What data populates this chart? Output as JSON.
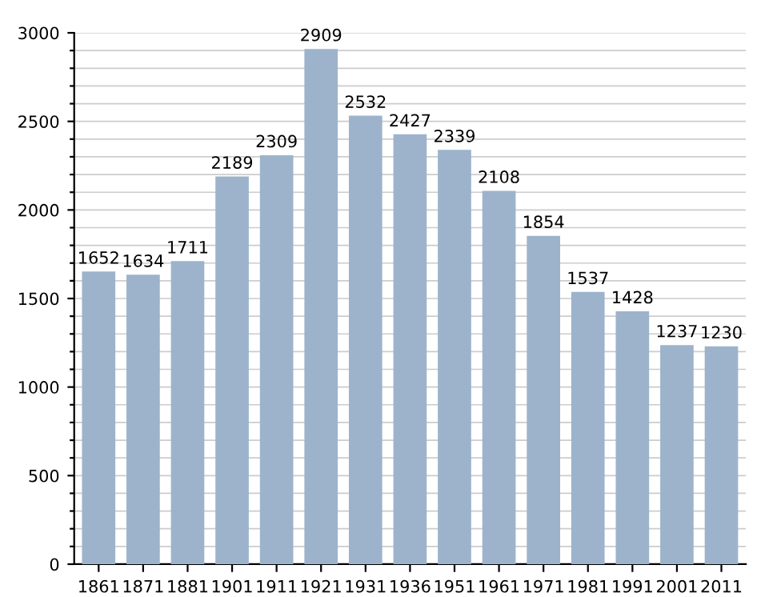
{
  "chart_data": {
    "type": "bar",
    "categories": [
      "1861",
      "1871",
      "1881",
      "1901",
      "1911",
      "1921",
      "1931",
      "1936",
      "1951",
      "1961",
      "1971",
      "1981",
      "1991",
      "2001",
      "2011"
    ],
    "values": [
      1652,
      1634,
      1711,
      2189,
      2309,
      2909,
      2532,
      2427,
      2339,
      2108,
      1854,
      1537,
      1428,
      1237,
      1230
    ],
    "color": "#9db3cc",
    "data_labels": true,
    "ylim": [
      0,
      3000
    ],
    "yticks": [
      0,
      {
        "value": 100,
        "label": null
      },
      {
        "value": 200,
        "label": null
      },
      {
        "value": 300,
        "label": null
      },
      {
        "value": 400,
        "label": null
      },
      500,
      {
        "value": 600,
        "label": null
      },
      {
        "value": 700,
        "label": null
      },
      {
        "value": 800,
        "label": null
      },
      {
        "value": 900,
        "label": null
      },
      1000,
      {
        "value": 1100,
        "label": null
      },
      {
        "value": 1200,
        "label": null
      },
      {
        "value": 1300,
        "label": null
      },
      {
        "value": 1400,
        "label": null
      },
      1500,
      {
        "value": 1600,
        "label": null
      },
      {
        "value": 1700,
        "label": null
      },
      {
        "value": 1800,
        "label": null
      },
      {
        "value": 1900,
        "label": null
      },
      2000,
      {
        "value": 2100,
        "label": null
      },
      {
        "value": 2200,
        "label": null
      },
      {
        "value": 2300,
        "label": null
      },
      {
        "value": 2400,
        "label": null
      },
      2500,
      {
        "value": 2600,
        "label": null
      },
      {
        "value": 2700,
        "label": null
      },
      {
        "value": 2800,
        "label": null
      },
      {
        "value": 2900,
        "label": null
      },
      3000
    ],
    "grid": "y"
  }
}
